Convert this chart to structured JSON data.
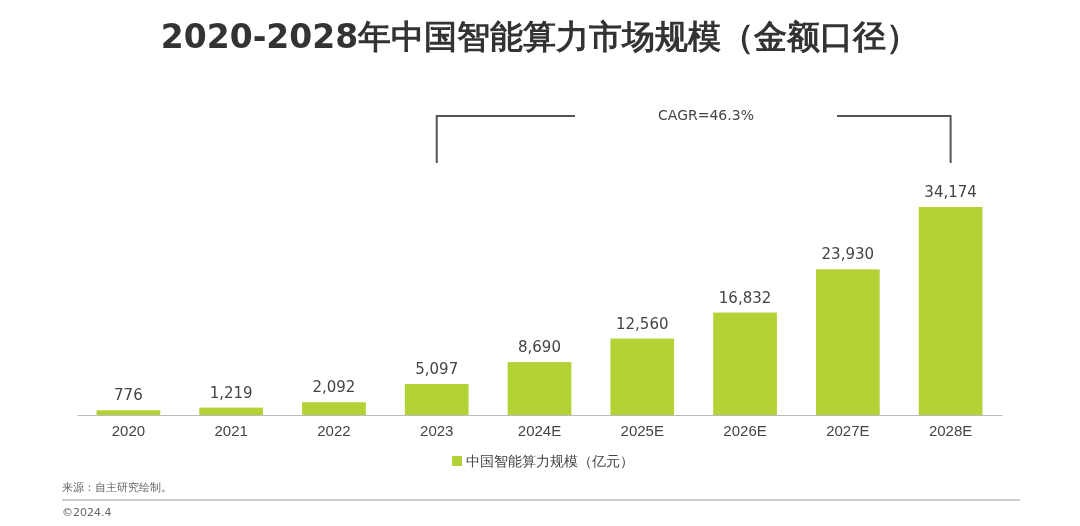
{
  "chart_data": {
    "type": "bar",
    "title": "2020-2028年中国智能算力市场规模（金额口径）",
    "categories": [
      "2020",
      "2021",
      "2022",
      "2023",
      "2024E",
      "2025E",
      "2026E",
      "2027E",
      "2028E"
    ],
    "series": [
      {
        "name": "中国智能算力规模（亿元）",
        "color": "#b2d235",
        "values": [
          776,
          1219,
          2092,
          5097,
          8690,
          12560,
          16832,
          23930,
          34174
        ],
        "value_labels": [
          "776",
          "1,219",
          "2,092",
          "5,097",
          "8,690",
          "12,560",
          "16,832",
          "23,930",
          "34,174"
        ]
      }
    ],
    "legend": "bottom",
    "annotations": [
      "CAGR=46.3%",
      "来源：自主研究绘制。",
      "©2024.4"
    ]
  }
}
